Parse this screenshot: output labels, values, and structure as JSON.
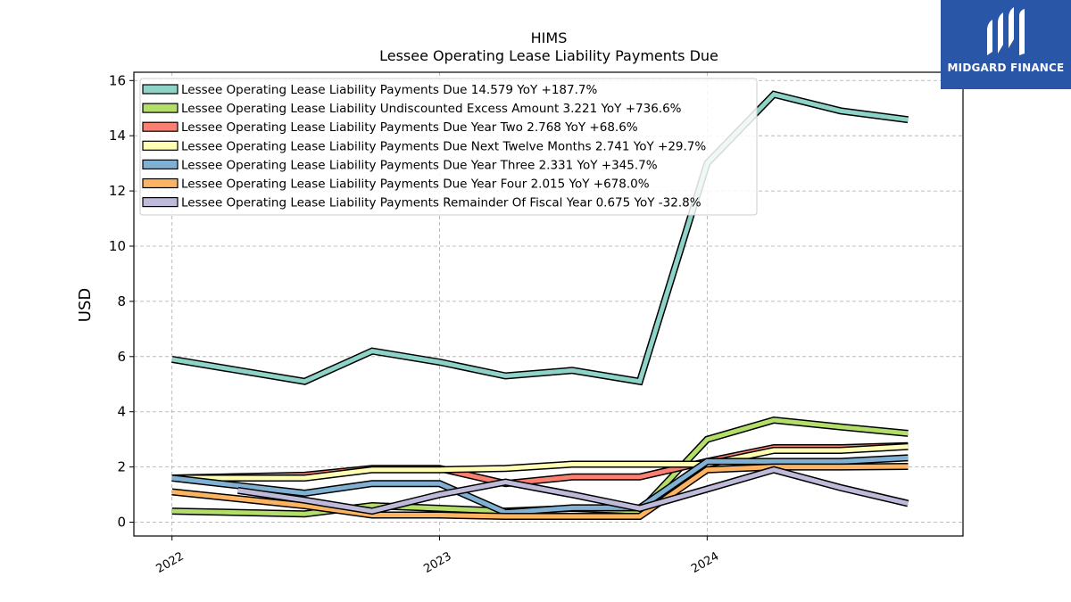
{
  "brand": {
    "name": "MIDGARD FINANCE",
    "bg_color": "#2a56a8"
  },
  "chart_data": {
    "type": "line",
    "title": "HIMS",
    "subtitle": "Lessee Operating Lease Liability Payments Due",
    "xlabel": "",
    "ylabel": "USD",
    "ylim": [
      -0.5,
      16.3
    ],
    "yticks": [
      0,
      2,
      4,
      6,
      8,
      10,
      12,
      14,
      16
    ],
    "xlim": [
      "2021-11-10",
      "2024-12-15"
    ],
    "xticks": [
      {
        "label": "2022",
        "date": "2022-01-01"
      },
      {
        "label": "2023",
        "date": "2023-01-01"
      },
      {
        "label": "2024",
        "date": "2024-01-01"
      }
    ],
    "x": [
      "2022-01-01",
      "2022-04-01",
      "2022-07-01",
      "2022-10-01",
      "2023-01-01",
      "2023-04-01",
      "2023-07-01",
      "2023-10-01",
      "2024-01-01",
      "2024-04-01",
      "2024-07-01",
      "2024-10-01"
    ],
    "grid": true,
    "legend_position": "top-left",
    "series": [
      {
        "name": "Lessee Operating Lease Liability Payments Due  14.579 YoY +187.7%",
        "color": "#8dd3c7",
        "values": [
          5.9,
          null,
          5.1,
          6.2,
          5.8,
          5.3,
          5.5,
          5.1,
          13.0,
          15.5,
          14.9,
          14.58
        ]
      },
      {
        "name": "Lessee Operating Lease Liability Undiscounted Excess Amount  3.221 YoY +736.6%",
        "color": "#b3de69",
        "values": [
          0.4,
          null,
          0.3,
          0.6,
          0.5,
          0.4,
          0.5,
          0.4,
          3.0,
          3.7,
          3.45,
          3.22
        ]
      },
      {
        "name": "Lessee Operating Lease Liability Payments Due Year Two  2.768 YoY +68.6%",
        "color": "#fb8072",
        "values": [
          1.6,
          null,
          1.7,
          1.95,
          1.95,
          1.4,
          1.64,
          1.64,
          2.2,
          2.7,
          2.7,
          2.77
        ]
      },
      {
        "name": "Lessee Operating Lease Liability Payments Due Next Twelve Months  2.741 YoY +29.7%",
        "color": "#ffffb3",
        "values": [
          1.6,
          null,
          1.6,
          1.9,
          1.9,
          1.95,
          2.1,
          2.1,
          2.1,
          2.6,
          2.6,
          2.74
        ]
      },
      {
        "name": "Lessee Operating Lease Liability Payments Due Year Three  2.331 YoY +345.7%",
        "color": "#80b1d3",
        "values": [
          1.6,
          null,
          1.05,
          1.4,
          1.4,
          0.35,
          0.52,
          0.52,
          2.2,
          2.2,
          2.2,
          2.33
        ]
      },
      {
        "name": "Lessee Operating Lease Liability Payments Due Year Four  2.015 YoY +678.0%",
        "color": "#fdb462",
        "values": [
          1.1,
          null,
          0.6,
          0.26,
          0.26,
          0.21,
          0.21,
          0.21,
          1.9,
          2.0,
          2.0,
          2.02
        ]
      },
      {
        "name": "Lessee Operating Lease Liability Payments Remainder Of Fiscal Year  0.675 YoY -32.8%",
        "color": "#bebada",
        "values": [
          null,
          1.15,
          0.8,
          0.4,
          1.0,
          1.45,
          1.0,
          0.5,
          1.2,
          1.9,
          1.25,
          0.68
        ]
      }
    ]
  }
}
